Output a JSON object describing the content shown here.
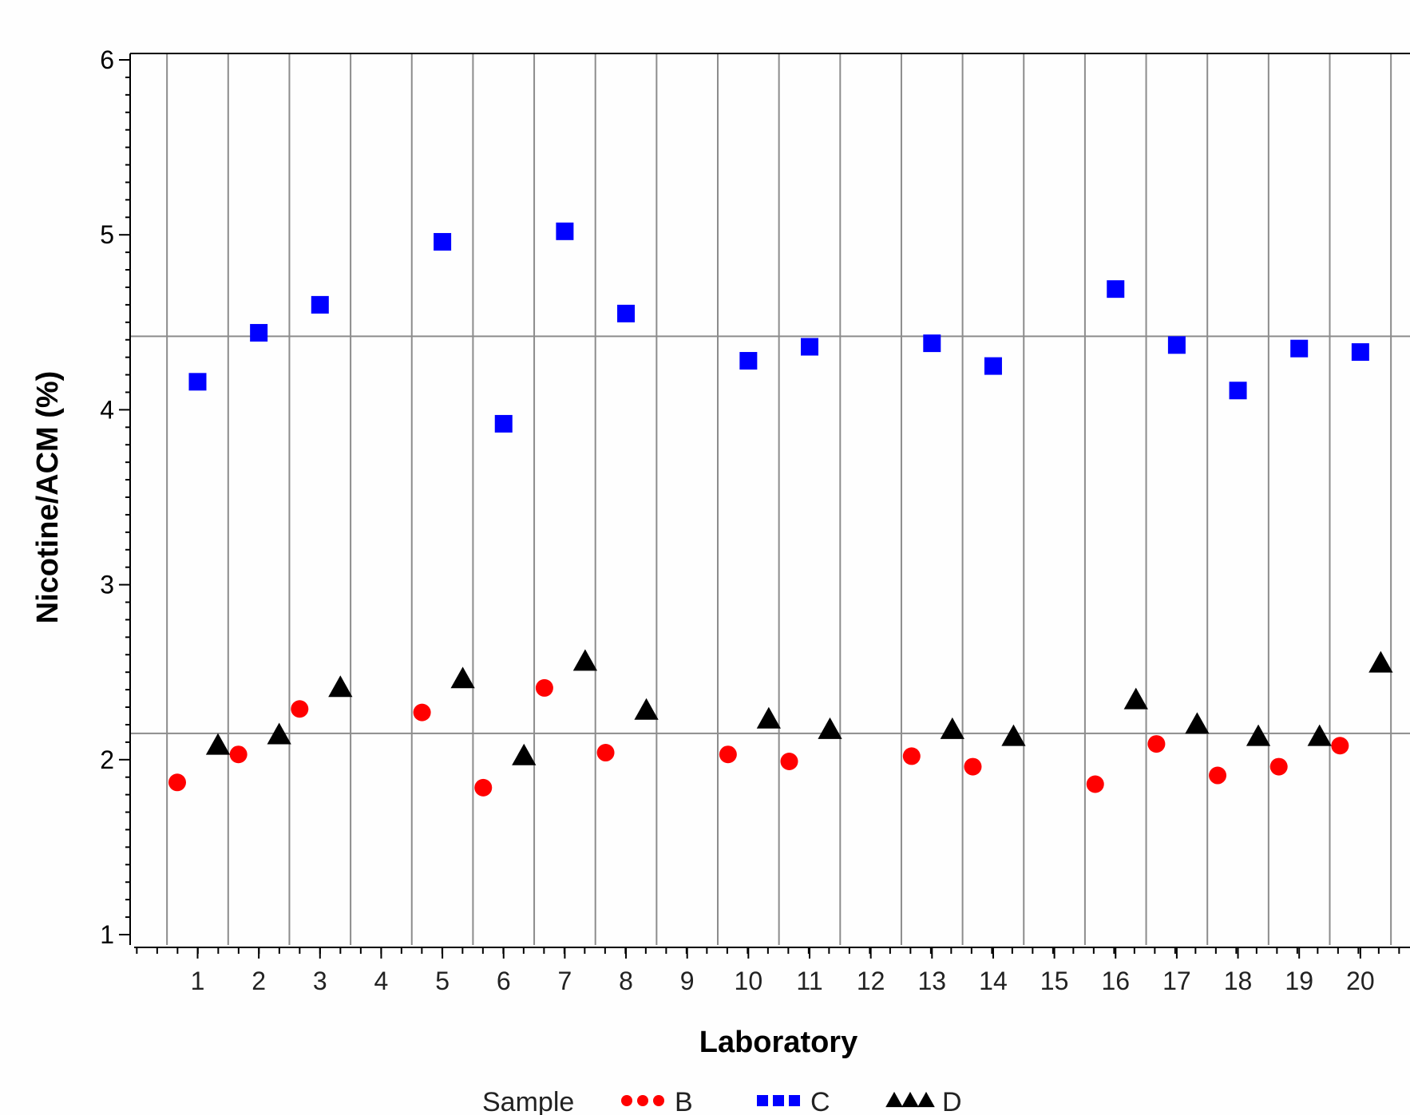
{
  "chart_data": {
    "type": "scatter",
    "xlabel": "Laboratory",
    "ylabel": "Nicotine/ACM (%)",
    "ylim": [
      1,
      6
    ],
    "y_ticks": [
      "1",
      "2",
      "3",
      "4",
      "5",
      "6"
    ],
    "x_ticks": [
      "1",
      "2",
      "3",
      "4",
      "5",
      "6",
      "7",
      "8",
      "9",
      "10",
      "11",
      "12",
      "13",
      "14",
      "15",
      "16",
      "17",
      "18",
      "19",
      "20"
    ],
    "grid": "vertical lines at laboratory boundaries",
    "reference_lines": [
      4.42,
      2.15
    ],
    "legend": {
      "title": "Sample",
      "placement": "bottom",
      "entries": [
        "B",
        "C",
        "D"
      ]
    },
    "series": [
      {
        "name": "B",
        "marker": "circle",
        "color": "#ff0000",
        "points": [
          {
            "lab": 1,
            "y": 1.87
          },
          {
            "lab": 2,
            "y": 2.03
          },
          {
            "lab": 3,
            "y": 2.29
          },
          {
            "lab": 5,
            "y": 2.27
          },
          {
            "lab": 6,
            "y": 1.84
          },
          {
            "lab": 7,
            "y": 2.41
          },
          {
            "lab": 8,
            "y": 2.04
          },
          {
            "lab": 10,
            "y": 2.03
          },
          {
            "lab": 11,
            "y": 1.99
          },
          {
            "lab": 13,
            "y": 2.02
          },
          {
            "lab": 14,
            "y": 1.96
          },
          {
            "lab": 16,
            "y": 1.86
          },
          {
            "lab": 17,
            "y": 2.09
          },
          {
            "lab": 18,
            "y": 1.91
          },
          {
            "lab": 19,
            "y": 1.96
          },
          {
            "lab": 20,
            "y": 2.08
          }
        ]
      },
      {
        "name": "C",
        "marker": "square",
        "color": "#0000ff",
        "points": [
          {
            "lab": 1,
            "y": 4.16
          },
          {
            "lab": 2,
            "y": 4.44
          },
          {
            "lab": 3,
            "y": 4.6
          },
          {
            "lab": 5,
            "y": 4.96
          },
          {
            "lab": 6,
            "y": 3.92
          },
          {
            "lab": 7,
            "y": 5.02
          },
          {
            "lab": 8,
            "y": 4.55
          },
          {
            "lab": 10,
            "y": 4.28
          },
          {
            "lab": 11,
            "y": 4.36
          },
          {
            "lab": 13,
            "y": 4.38
          },
          {
            "lab": 14,
            "y": 4.25
          },
          {
            "lab": 16,
            "y": 4.69
          },
          {
            "lab": 17,
            "y": 4.37
          },
          {
            "lab": 18,
            "y": 4.11
          },
          {
            "lab": 19,
            "y": 4.35
          },
          {
            "lab": 20,
            "y": 4.33
          }
        ]
      },
      {
        "name": "D",
        "marker": "triangle",
        "color": "#000000",
        "points": [
          {
            "lab": 1,
            "y": 2.08
          },
          {
            "lab": 2,
            "y": 2.14
          },
          {
            "lab": 3,
            "y": 2.41
          },
          {
            "lab": 5,
            "y": 2.46
          },
          {
            "lab": 6,
            "y": 2.02
          },
          {
            "lab": 7,
            "y": 2.56
          },
          {
            "lab": 8,
            "y": 2.28
          },
          {
            "lab": 10,
            "y": 2.23
          },
          {
            "lab": 11,
            "y": 2.17
          },
          {
            "lab": 13,
            "y": 2.17
          },
          {
            "lab": 14,
            "y": 2.13
          },
          {
            "lab": 16,
            "y": 2.34
          },
          {
            "lab": 17,
            "y": 2.2
          },
          {
            "lab": 18,
            "y": 2.13
          },
          {
            "lab": 19,
            "y": 2.13
          },
          {
            "lab": 20,
            "y": 2.55
          }
        ]
      }
    ]
  },
  "colors": {
    "grid": "#8c8c8c",
    "axis": "#000000",
    "background": "#fefefe"
  }
}
